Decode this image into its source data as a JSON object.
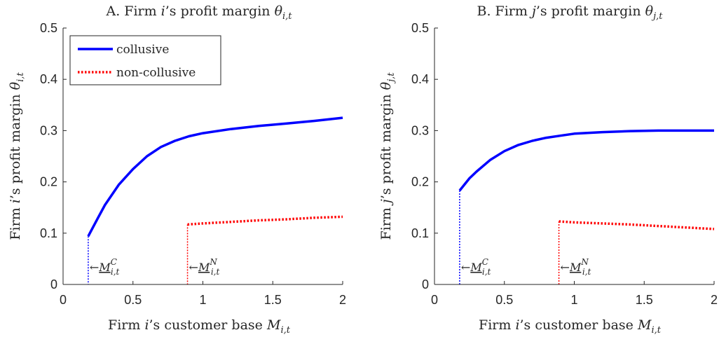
{
  "chart_data": [
    {
      "type": "line",
      "title": "A. Firm i's profit margin θi,t",
      "xlabel": "Firm i's customer base Mi,t",
      "ylabel": "Firm i's profit margin θi,t",
      "xlim": [
        0,
        2
      ],
      "ylim": [
        0,
        0.5
      ],
      "xticks": [
        0,
        0.5,
        1,
        1.5,
        2
      ],
      "xtick_labels": [
        "0",
        "0.5",
        "1",
        "1.5",
        "2"
      ],
      "yticks": [
        0,
        0.1,
        0.2,
        0.3,
        0.4,
        0.5
      ],
      "ytick_labels": [
        "0",
        "0.1",
        "0.2",
        "0.3",
        "0.4",
        "0.5"
      ],
      "grid": false,
      "legend_position": "top-left",
      "series": [
        {
          "name": "collusive",
          "color": "#0000ff",
          "style": "solid",
          "x": [
            0.18,
            0.25,
            0.3,
            0.4,
            0.5,
            0.6,
            0.7,
            0.8,
            0.9,
            1.0,
            1.2,
            1.4,
            1.6,
            1.8,
            2.0
          ],
          "y": [
            0.094,
            0.13,
            0.155,
            0.195,
            0.225,
            0.25,
            0.268,
            0.28,
            0.289,
            0.295,
            0.303,
            0.309,
            0.314,
            0.319,
            0.325
          ]
        },
        {
          "name": "non-collusive",
          "color": "#ff0000",
          "style": "dotted",
          "x": [
            0.89,
            1.0,
            1.2,
            1.4,
            1.6,
            1.8,
            2.0
          ],
          "y": [
            0.117,
            0.119,
            0.122,
            0.125,
            0.127,
            0.13,
            0.132
          ]
        }
      ],
      "thresholds": [
        {
          "x": 0.18,
          "y_top": 0.094,
          "color": "#0000ff",
          "label_sup": "C"
        },
        {
          "x": 0.89,
          "y_top": 0.117,
          "color": "#ff0000",
          "label_sup": "N"
        }
      ]
    },
    {
      "type": "line",
      "title": "B. Firm j's profit margin θj,t",
      "xlabel": "Firm i's customer base Mi,t",
      "ylabel": "Firm j's profit margin θj,t",
      "xlim": [
        0,
        2
      ],
      "ylim": [
        0,
        0.5
      ],
      "xticks": [
        0,
        0.5,
        1,
        1.5,
        2
      ],
      "xtick_labels": [
        "0",
        "0.5",
        "1",
        "1.5",
        "2"
      ],
      "yticks": [
        0,
        0.1,
        0.2,
        0.3,
        0.4,
        0.5
      ],
      "ytick_labels": [
        "0",
        "0.1",
        "0.2",
        "0.3",
        "0.4",
        "0.5"
      ],
      "grid": false,
      "series": [
        {
          "name": "collusive",
          "color": "#0000ff",
          "style": "solid",
          "x": [
            0.18,
            0.25,
            0.3,
            0.4,
            0.5,
            0.6,
            0.7,
            0.8,
            0.9,
            1.0,
            1.2,
            1.4,
            1.6,
            1.8,
            2.0
          ],
          "y": [
            0.183,
            0.207,
            0.22,
            0.243,
            0.26,
            0.272,
            0.28,
            0.286,
            0.29,
            0.294,
            0.297,
            0.299,
            0.3,
            0.3,
            0.3
          ]
        },
        {
          "name": "non-collusive",
          "color": "#ff0000",
          "style": "dotted",
          "x": [
            0.89,
            1.0,
            1.2,
            1.4,
            1.6,
            1.8,
            2.0
          ],
          "y": [
            0.123,
            0.121,
            0.119,
            0.117,
            0.114,
            0.111,
            0.108
          ]
        }
      ],
      "thresholds": [
        {
          "x": 0.18,
          "y_top": 0.183,
          "color": "#0000ff",
          "label_sup": "C"
        },
        {
          "x": 0.89,
          "y_top": 0.123,
          "color": "#ff0000",
          "label_sup": "N"
        }
      ]
    }
  ],
  "texts": {
    "panel_a": {
      "title_prefix": "A. Firm ",
      "title_i": "i",
      "title_mid": "’s profit margin ",
      "title_theta": "θ",
      "title_sub": "i,t",
      "ylabel_prefix": "Firm ",
      "ylabel_i": "i",
      "ylabel_mid": "’s profit margin ",
      "ylabel_theta": "θ",
      "ylabel_sub": "i,t",
      "xlabel_prefix": "Firm ",
      "xlabel_i": "i",
      "xlabel_mid": "’s customer base ",
      "xlabel_M": "M",
      "xlabel_sub": "i,t"
    },
    "panel_b": {
      "title_prefix": "B. Firm ",
      "title_j": "j",
      "title_mid": "’s profit margin ",
      "title_theta": "θ",
      "title_sub": "j,t",
      "ylabel_prefix": "Firm ",
      "ylabel_j": "j",
      "ylabel_mid": "’s profit margin ",
      "ylabel_theta": "θ",
      "ylabel_sub": "j,t",
      "xlabel_prefix": "Firm ",
      "xlabel_i": "i",
      "xlabel_mid": "’s customer base ",
      "xlabel_M": "M",
      "xlabel_sub": "i,t"
    },
    "threshold_arrow": "←",
    "threshold_M": "M",
    "threshold_sub": "i,t",
    "legend": {
      "collusive": "collusive",
      "non_collusive": "non-collusive"
    }
  }
}
